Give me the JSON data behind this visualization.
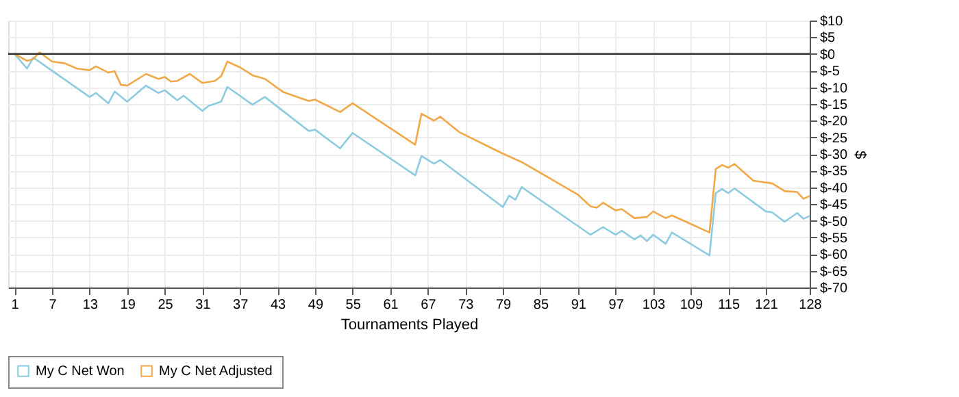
{
  "chart_data": {
    "type": "line",
    "xlabel": "Tournaments Played",
    "ylabel": "$",
    "xlim": [
      0,
      128
    ],
    "xticks": [
      1,
      7,
      13,
      19,
      25,
      31,
      37,
      43,
      49,
      55,
      61,
      67,
      73,
      79,
      85,
      91,
      97,
      103,
      109,
      115,
      121,
      128
    ],
    "ylim": [
      -70,
      10
    ],
    "yticks": [
      {
        "value": 10,
        "label": "$10"
      },
      {
        "value": 5,
        "label": "$5"
      },
      {
        "value": 0,
        "label": "$0"
      },
      {
        "value": -5,
        "label": "$-5"
      },
      {
        "value": -10,
        "label": "$-10"
      },
      {
        "value": -15,
        "label": "$-15"
      },
      {
        "value": -20,
        "label": "$-20"
      },
      {
        "value": -25,
        "label": "$-25"
      },
      {
        "value": -30,
        "label": "$-30"
      },
      {
        "value": -35,
        "label": "$-35"
      },
      {
        "value": -40,
        "label": "$-40"
      },
      {
        "value": -45,
        "label": "$-45"
      },
      {
        "value": -50,
        "label": "$-50"
      },
      {
        "value": -55,
        "label": "$-55"
      },
      {
        "value": -60,
        "label": "$-60"
      },
      {
        "value": -65,
        "label": "$-65"
      },
      {
        "value": -70,
        "label": "$-70"
      }
    ],
    "grid": true,
    "legend": "bottom left",
    "marker": "none",
    "line_style": "solid",
    "ref_lines": [
      {
        "axis": "y",
        "value": 0,
        "color": "#333333"
      }
    ],
    "series": [
      {
        "name": "My C Net Won",
        "color": "#8ccbe0",
        "x": [
          1,
          3,
          4,
          13,
          14,
          16,
          17,
          19,
          22,
          24,
          25,
          27,
          28,
          31,
          32,
          34,
          35,
          39,
          41,
          48,
          49,
          53,
          55,
          65,
          66,
          68,
          69,
          79,
          80,
          81,
          82,
          93,
          95,
          97,
          98,
          100,
          101,
          102,
          103,
          105,
          106,
          112,
          113,
          114,
          115,
          116,
          121,
          122,
          124,
          126,
          127,
          128
        ],
        "values": [
          0,
          -4.4,
          -1.1,
          -12.9,
          -11.7,
          -14.8,
          -11.3,
          -14.3,
          -9.5,
          -11.7,
          -10.9,
          -13.9,
          -12.5,
          -17.1,
          -15.6,
          -14.3,
          -9.9,
          -15.2,
          -12.9,
          -23.1,
          -22.7,
          -28.3,
          -23.7,
          -36.4,
          -30.6,
          -32.9,
          -31.8,
          -45.9,
          -42.5,
          -43.7,
          -39.9,
          -54.2,
          -51.9,
          -54.2,
          -53,
          -55.6,
          -54.4,
          -56.1,
          -54.2,
          -56.9,
          -53.5,
          -60.4,
          -41.7,
          -40.5,
          -41.7,
          -40.3,
          -47.2,
          -47.5,
          -50.3,
          -47.7,
          -49.4,
          -48.6
        ]
      },
      {
        "name": "My C Net Adjusted",
        "color": "#f0a848",
        "x": [
          1,
          3,
          4,
          5,
          7,
          9,
          11,
          13,
          14,
          16,
          17,
          18,
          19,
          22,
          24,
          25,
          26,
          27,
          29,
          31,
          33,
          34,
          35,
          37,
          39,
          41,
          43,
          44,
          48,
          49,
          53,
          55,
          65,
          66,
          68,
          69,
          72,
          79,
          82,
          90,
          91,
          93,
          94,
          95,
          97,
          98,
          100,
          102,
          103,
          105,
          106,
          112,
          113,
          114,
          115,
          116,
          119,
          122,
          124,
          126,
          127,
          128
        ],
        "values": [
          0,
          -2.1,
          -1.5,
          0.5,
          -2.3,
          -2.8,
          -4.4,
          -4.9,
          -3.7,
          -5.6,
          -5.2,
          -9.3,
          -9.5,
          -6,
          -7.5,
          -6.9,
          -8.3,
          -8.1,
          -6,
          -8.7,
          -8.1,
          -6.7,
          -2.3,
          -4,
          -6.4,
          -7.5,
          -10.2,
          -11.5,
          -14.1,
          -13.7,
          -17.4,
          -14.8,
          -27.2,
          -17.9,
          -20,
          -18.8,
          -23.4,
          -29.9,
          -32.4,
          -41.1,
          -42.2,
          -45.7,
          -46.1,
          -44.6,
          -46.9,
          -46.5,
          -49.2,
          -48.9,
          -47.2,
          -49.2,
          -48.4,
          -53.5,
          -34.5,
          -33.3,
          -34.1,
          -33,
          -38,
          -38.8,
          -41.1,
          -41.4,
          -43.4,
          -42.6
        ]
      }
    ]
  }
}
